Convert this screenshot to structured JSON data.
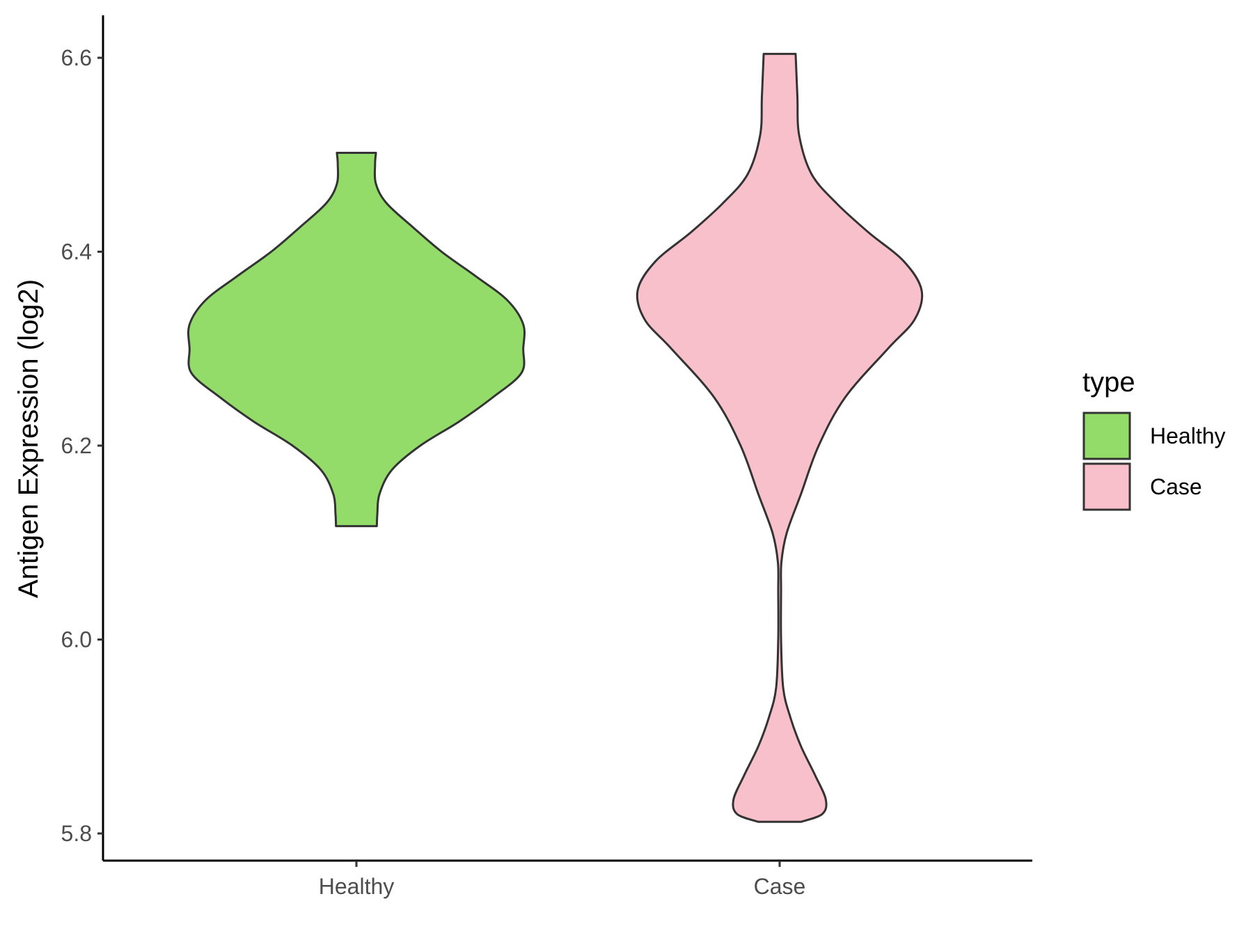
{
  "chart_data": {
    "type": "violin",
    "title": "",
    "xlabel": "",
    "ylabel": "Antigen Expression (log2)",
    "ylim": [
      5.78,
      6.645
    ],
    "yticks": [
      "5.8",
      "6.0",
      "6.2",
      "6.4",
      "6.6"
    ],
    "categories": [
      "Healthy",
      "Case"
    ],
    "grid": false,
    "legend": {
      "title": "type",
      "position": "right",
      "entries": [
        "Healthy",
        "Case"
      ]
    },
    "series": [
      {
        "name": "Healthy",
        "color": "#93DC6A",
        "min": 6.117,
        "max": 6.502,
        "profile": [
          [
            6.117,
            0.115
          ],
          [
            6.13,
            0.118
          ],
          [
            6.15,
            0.13
          ],
          [
            6.175,
            0.2
          ],
          [
            6.2,
            0.36
          ],
          [
            6.225,
            0.58
          ],
          [
            6.25,
            0.77
          ],
          [
            6.275,
            0.93
          ],
          [
            6.3,
            0.94
          ],
          [
            6.325,
            0.94
          ],
          [
            6.35,
            0.85
          ],
          [
            6.375,
            0.67
          ],
          [
            6.4,
            0.48
          ],
          [
            6.425,
            0.32
          ],
          [
            6.45,
            0.17
          ],
          [
            6.47,
            0.11
          ],
          [
            6.49,
            0.105
          ],
          [
            6.502,
            0.11
          ]
        ]
      },
      {
        "name": "Case",
        "color": "#F8C0CB",
        "min": 5.812,
        "max": 6.604,
        "profile": [
          [
            5.812,
            0.12
          ],
          [
            5.82,
            0.24
          ],
          [
            5.835,
            0.26
          ],
          [
            5.86,
            0.2
          ],
          [
            5.89,
            0.12
          ],
          [
            5.92,
            0.06
          ],
          [
            5.95,
            0.02
          ],
          [
            6.0,
            0.008
          ],
          [
            6.05,
            0.008
          ],
          [
            6.08,
            0.01
          ],
          [
            6.11,
            0.04
          ],
          [
            6.15,
            0.12
          ],
          [
            6.2,
            0.22
          ],
          [
            6.25,
            0.37
          ],
          [
            6.3,
            0.61
          ],
          [
            6.33,
            0.76
          ],
          [
            6.36,
            0.8
          ],
          [
            6.39,
            0.7
          ],
          [
            6.42,
            0.5
          ],
          [
            6.45,
            0.32
          ],
          [
            6.48,
            0.18
          ],
          [
            6.52,
            0.11
          ],
          [
            6.56,
            0.1
          ],
          [
            6.604,
            0.09
          ]
        ]
      }
    ]
  }
}
